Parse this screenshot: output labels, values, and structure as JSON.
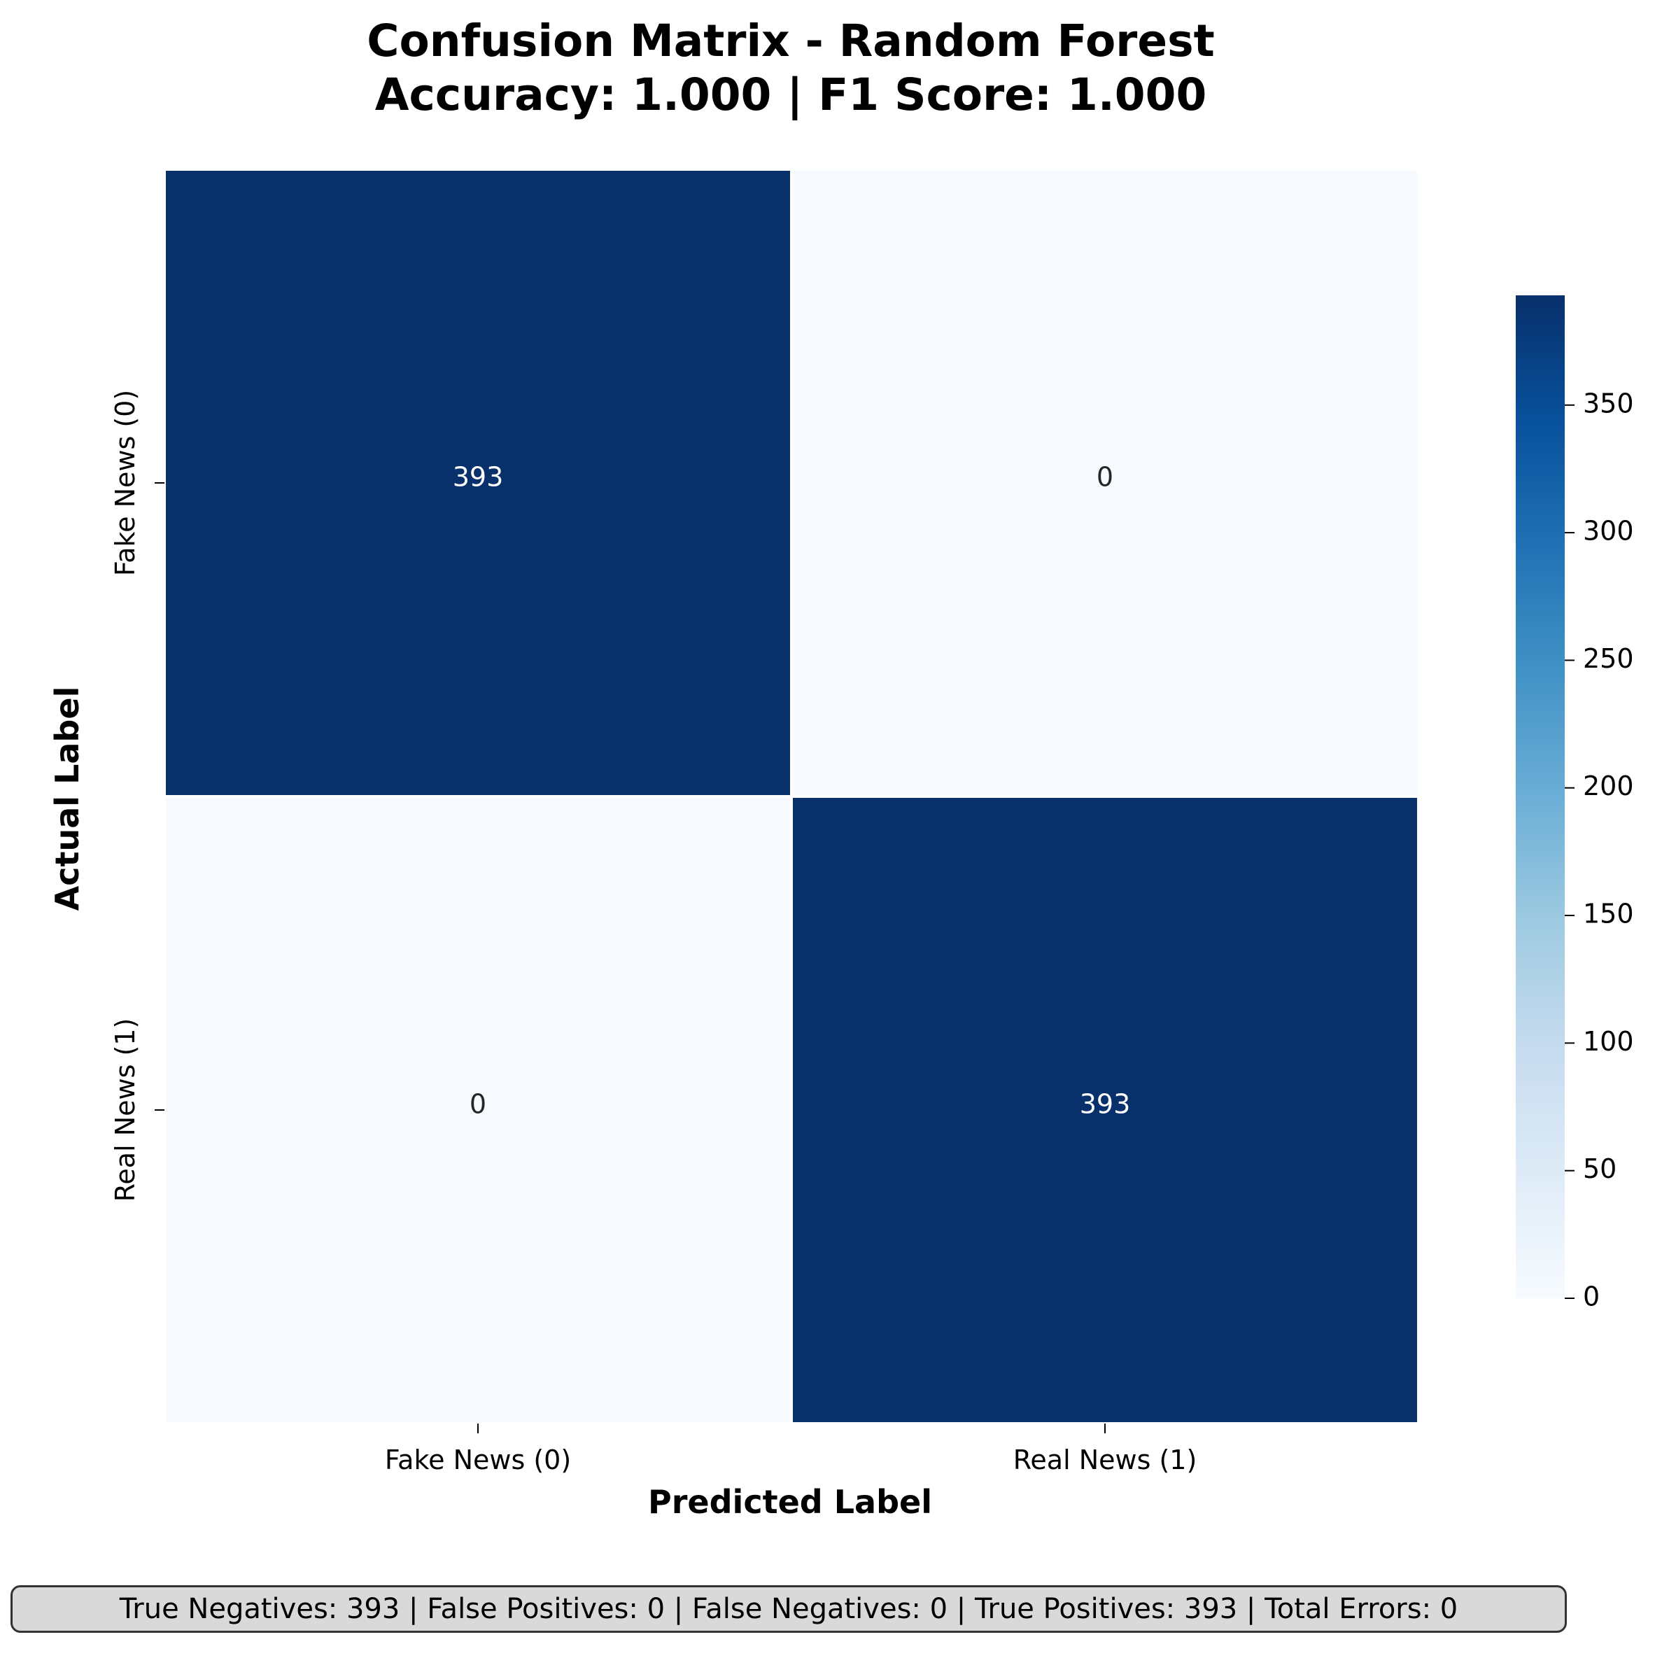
{
  "chart_data": {
    "type": "heatmap",
    "title": [
      "Confusion Matrix - Random Forest",
      "Accuracy: 1.000 | F1 Score: 1.000"
    ],
    "xlabel": "Predicted Label",
    "ylabel": "Actual Label",
    "x_categories": [
      "Fake News (0)",
      "Real News (1)"
    ],
    "y_categories": [
      "Fake News (0)",
      "Real News (1)"
    ],
    "values": [
      [
        393,
        0
      ],
      [
        0,
        393
      ]
    ],
    "colormap": "Blues",
    "colorbar": {
      "range": [
        0,
        393
      ],
      "ticks": [
        0,
        50,
        100,
        150,
        200,
        250,
        300,
        350
      ]
    },
    "colors": {
      "high": "#08306b",
      "low": "#f7fbff",
      "text_on_dark": "#ffffff",
      "text_on_light": "#262626"
    }
  },
  "summary": "True Negatives: 393 | False Positives: 0 | False Negatives: 0 | True Positives: 393 | Total Errors: 0"
}
